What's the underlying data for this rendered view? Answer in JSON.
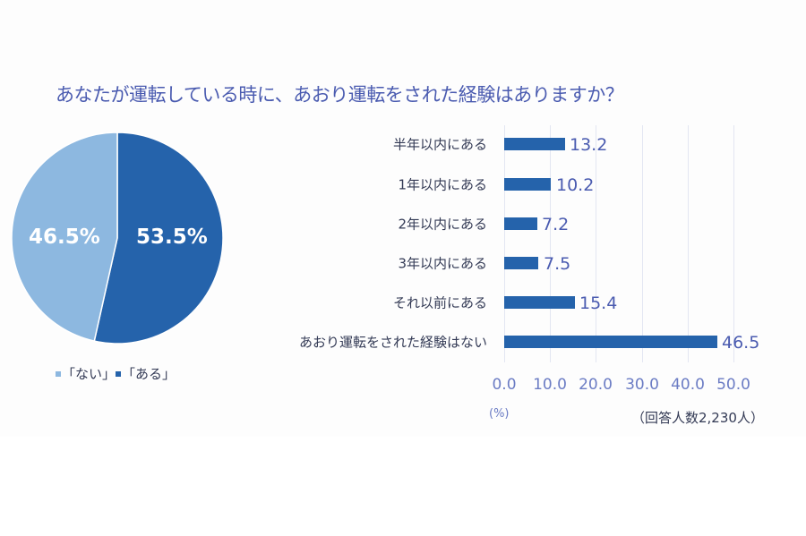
{
  "title": "あなたが運転している時に、あおり運転をされた経験はありますか？",
  "colors": {
    "dark_blue": "#2563ab",
    "light_blue": "#8db8e0",
    "title": "#4a5bb0"
  },
  "pie": {
    "slices": [
      {
        "label": "「ない」",
        "value": 46.5,
        "display": "46.5%",
        "color": "#8db8e0"
      },
      {
        "label": "「ある」",
        "value": 53.5,
        "display": "53.5%",
        "color": "#2563ab"
      }
    ]
  },
  "legend": {
    "items": [
      "「ない」",
      "「ある」"
    ]
  },
  "bar": {
    "categories": [
      "半年以内にある",
      "1年以内にある",
      "2年以内にある",
      "3年以内にある",
      "それ以前にある",
      "あおり運転をされた経験はない"
    ],
    "values": [
      "13.2",
      "10.2",
      "7.2",
      "7.5",
      "15.4",
      "46.5"
    ],
    "ticks": [
      "0.0",
      "10.0",
      "20.0",
      "30.0",
      "40.0",
      "50.0"
    ],
    "unit": "(%)",
    "note": "（回答人数2,230人）"
  },
  "chart_data": [
    {
      "type": "pie",
      "title": "あなたが運転している時に、あおり運転をされた経験はありますか？",
      "categories": [
        "「ない」",
        "「ある」"
      ],
      "values": [
        46.5,
        53.5
      ],
      "unit": "%",
      "legend_position": "bottom"
    },
    {
      "type": "bar",
      "orientation": "horizontal",
      "categories": [
        "半年以内にある",
        "1年以内にある",
        "2年以内にある",
        "3年以内にある",
        "それ以前にある",
        "あおり運転をされた経験はない"
      ],
      "values": [
        13.2,
        10.2,
        7.2,
        7.5,
        15.4,
        46.5
      ],
      "xlabel": "(%)",
      "ylabel": "",
      "xlim": [
        0,
        50
      ],
      "xticks": [
        0.0,
        10.0,
        20.0,
        30.0,
        40.0,
        50.0
      ],
      "grid": true,
      "annotation": "（回答人数2,230人）"
    }
  ]
}
